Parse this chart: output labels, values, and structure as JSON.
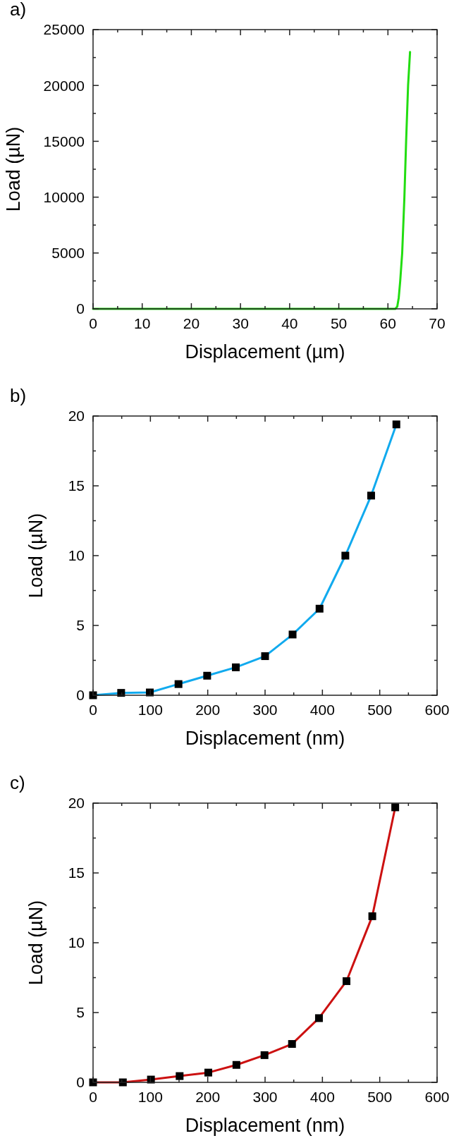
{
  "chart_data": [
    {
      "type": "line",
      "title": "a)",
      "xlabel": "Displacement (µm)",
      "ylabel": "Load (µN)",
      "x": [
        0,
        61.5,
        61.9,
        62.2,
        62.5,
        62.9,
        63.35,
        63.7,
        64.1,
        64.5
      ],
      "series": [
        {
          "color": "#22dd11",
          "values": [
            0,
            0,
            200,
            1000,
            2500,
            5000,
            10000,
            15000,
            20000,
            23000
          ]
        }
      ],
      "xlim": [
        0,
        70
      ],
      "ylim": [
        0,
        25000
      ],
      "xticks": [
        0,
        {
          "value": 5,
          "label": null
        },
        10,
        {
          "value": 15,
          "label": null
        },
        20,
        {
          "value": 25,
          "label": null
        },
        30,
        {
          "value": 35,
          "label": null
        },
        40,
        {
          "value": 45,
          "label": null
        },
        50,
        {
          "value": 55,
          "label": null
        },
        60,
        {
          "value": 65,
          "label": null
        },
        70
      ],
      "yticks": [
        0,
        {
          "value": 2500,
          "label": null
        },
        5000,
        {
          "value": 7500,
          "label": null
        },
        10000,
        {
          "value": 12500,
          "label": null
        },
        15000,
        {
          "value": 17500,
          "label": null
        },
        20000,
        {
          "value": 22500,
          "label": null
        },
        25000
      ],
      "grid": false,
      "marker": "none",
      "line_style": "solid"
    },
    {
      "type": "line",
      "title": "b)",
      "xlabel": "Displacement (nm)",
      "ylabel": "Load (µN)",
      "x": [
        0,
        49,
        99,
        149,
        199,
        249,
        300,
        348,
        395,
        440,
        485,
        529
      ],
      "series": [
        {
          "color": "#11aaee",
          "values": [
            0,
            0.17,
            0.2,
            0.8,
            1.4,
            2.0,
            2.8,
            4.35,
            6.2,
            10.0,
            14.3,
            19.4
          ]
        }
      ],
      "xlim": [
        0,
        600
      ],
      "ylim": [
        0,
        20
      ],
      "xticks": [
        0,
        {
          "value": 50,
          "label": null
        },
        100,
        {
          "value": 150,
          "label": null
        },
        200,
        {
          "value": 250,
          "label": null
        },
        300,
        {
          "value": 350,
          "label": null
        },
        400,
        {
          "value": 450,
          "label": null
        },
        500,
        {
          "value": 550,
          "label": null
        },
        600
      ],
      "yticks": [
        0,
        {
          "value": 2.5,
          "label": null
        },
        5,
        {
          "value": 7.5,
          "label": null
        },
        10,
        {
          "value": 12.5,
          "label": null
        },
        15,
        {
          "value": 17.5,
          "label": null
        },
        20
      ],
      "grid": false,
      "marker": "square",
      "line_style": "solid"
    },
    {
      "type": "line",
      "title": "c)",
      "xlabel": "Displacement (nm)",
      "ylabel": "Load (µN)",
      "x": [
        0,
        52,
        101,
        151,
        201,
        250,
        299,
        347,
        394,
        442,
        487,
        527
      ],
      "series": [
        {
          "color": "#cc1111",
          "values": [
            0,
            0,
            0.2,
            0.45,
            0.7,
            1.25,
            1.95,
            2.75,
            4.6,
            7.25,
            11.9,
            19.7
          ]
        }
      ],
      "xlim": [
        0,
        600
      ],
      "ylim": [
        0,
        20
      ],
      "xticks": [
        0,
        {
          "value": 50,
          "label": null
        },
        100,
        {
          "value": 150,
          "label": null
        },
        200,
        {
          "value": 250,
          "label": null
        },
        300,
        {
          "value": 350,
          "label": null
        },
        400,
        {
          "value": 450,
          "label": null
        },
        500,
        {
          "value": 550,
          "label": null
        },
        600
      ],
      "yticks": [
        0,
        {
          "value": 2.5,
          "label": null
        },
        5,
        {
          "value": 7.5,
          "label": null
        },
        10,
        {
          "value": 12.5,
          "label": null
        },
        15,
        {
          "value": 17.5,
          "label": null
        },
        20
      ],
      "grid": false,
      "marker": "square",
      "line_style": "solid"
    }
  ]
}
